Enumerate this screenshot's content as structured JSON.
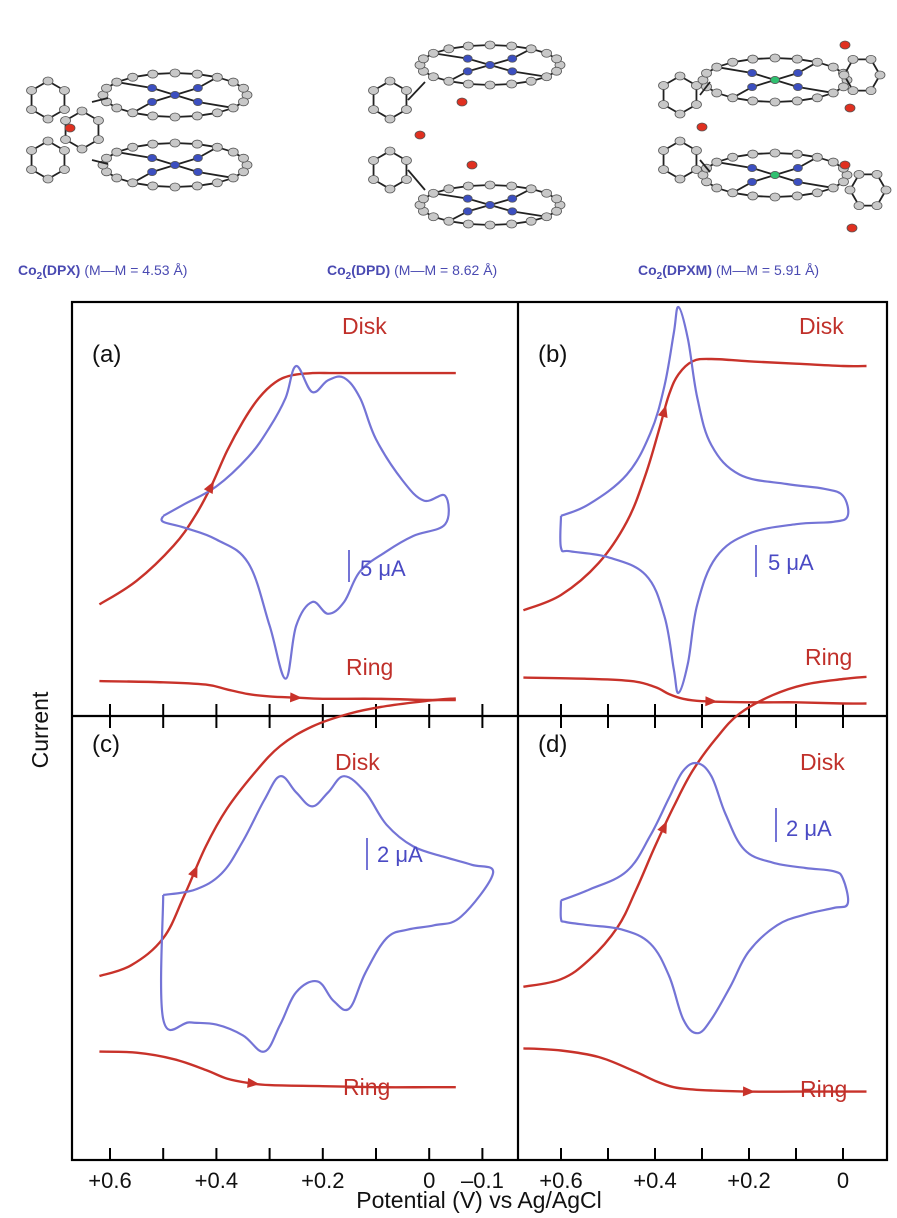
{
  "structures": [
    {
      "name": "Co₂(DPX)",
      "label_prefix": "Co",
      "label_sub": "2",
      "label_ligand": "(DPX)",
      "label_mm": "(M—M = 4.53 Å)"
    },
    {
      "name": "Co₂(DPD)",
      "label_prefix": "Co",
      "label_sub": "2",
      "label_ligand": "(DPD)",
      "label_mm": "(M—M = 8.62 Å)"
    },
    {
      "name": "Co₂(DPXM)",
      "label_prefix": "Co",
      "label_sub": "2",
      "label_ligand": "(DPXM)",
      "label_mm": "(M—M = 5.91 Å)"
    }
  ],
  "colors": {
    "disk_ring": "#c8322a",
    "cv": "#7474d6",
    "frame": "#000000",
    "label_blue": "#4a4ab2"
  },
  "axes": {
    "ylabel": "Current",
    "xlabel": "Potential (V) vs Ag/AgCl",
    "left_ticks": [
      "+0.6",
      "+0.4",
      "+0.2",
      "0",
      "–0.1"
    ],
    "right_ticks": [
      "+0.6",
      "+0.4",
      "+0.2",
      "0"
    ]
  },
  "chart_data": [
    {
      "type": "line",
      "panel": "(a)",
      "disk_label": "Disk",
      "ring_label": "Ring",
      "scale_label": "5 μA",
      "x_range": [
        0.62,
        -0.15
      ],
      "series": [
        {
          "name": "Disk",
          "x": [
            0.62,
            0.55,
            0.48,
            0.44,
            0.41,
            0.38,
            0.35,
            0.32,
            0.29,
            0.26,
            0.22,
            0.18,
            0.12,
            0.05,
            0.0,
            -0.05
          ],
          "y": [
            -0.8,
            -0.6,
            -0.3,
            -0.05,
            0.2,
            0.5,
            0.75,
            0.95,
            1.08,
            1.14,
            1.16,
            1.16,
            1.16,
            1.16,
            1.16,
            1.16
          ]
        },
        {
          "name": "Ring",
          "x": [
            0.62,
            0.5,
            0.42,
            0.38,
            0.34,
            0.3,
            0.25,
            0.2,
            0.1,
            0.0,
            -0.05
          ],
          "y": [
            -1.45,
            -1.46,
            -1.48,
            -1.52,
            -1.56,
            -1.58,
            -1.59,
            -1.6,
            -1.6,
            -1.61,
            -1.61
          ]
        },
        {
          "name": "CV",
          "x": [
            0.5,
            0.46,
            0.4,
            0.34,
            0.3,
            0.27,
            0.25,
            0.22,
            0.19,
            0.16,
            0.13,
            0.1,
            0.05,
            0.01,
            -0.03,
            -0.03,
            0.03,
            0.08,
            0.13,
            0.16,
            0.19,
            0.22,
            0.25,
            0.27,
            0.3,
            0.34,
            0.4,
            0.46,
            0.5,
            0.5
          ],
          "y": [
            -0.05,
            0.05,
            0.2,
            0.45,
            0.7,
            0.95,
            1.22,
            1.0,
            1.1,
            1.12,
            0.95,
            0.6,
            0.25,
            0.08,
            0.12,
            -0.12,
            -0.22,
            -0.35,
            -0.52,
            -0.78,
            -0.88,
            -0.78,
            -0.98,
            -1.43,
            -0.98,
            -0.45,
            -0.25,
            -0.15,
            -0.1,
            -0.05
          ]
        }
      ]
    },
    {
      "type": "line",
      "panel": "(b)",
      "disk_label": "Disk",
      "ring_label": "Ring",
      "scale_label": "5 μA",
      "x_range": [
        0.68,
        -0.1
      ],
      "series": [
        {
          "name": "Disk",
          "x": [
            0.68,
            0.6,
            0.52,
            0.46,
            0.42,
            0.39,
            0.37,
            0.35,
            0.32,
            0.28,
            0.2,
            0.1,
            0.0,
            -0.05
          ],
          "y": [
            -0.85,
            -0.72,
            -0.45,
            -0.1,
            0.3,
            0.7,
            0.98,
            1.15,
            1.26,
            1.28,
            1.26,
            1.24,
            1.22,
            1.22
          ]
        },
        {
          "name": "Ring",
          "x": [
            0.68,
            0.55,
            0.45,
            0.4,
            0.37,
            0.34,
            0.3,
            0.2,
            0.1,
            0.0,
            -0.05
          ],
          "y": [
            -1.42,
            -1.43,
            -1.45,
            -1.5,
            -1.56,
            -1.6,
            -1.62,
            -1.63,
            -1.63,
            -1.64,
            -1.64
          ]
        },
        {
          "name": "CV",
          "x": [
            0.6,
            0.54,
            0.46,
            0.41,
            0.38,
            0.36,
            0.35,
            0.33,
            0.31,
            0.28,
            0.22,
            0.12,
            0.04,
            0.0,
            -0.01,
            0.02,
            0.1,
            0.2,
            0.27,
            0.31,
            0.33,
            0.35,
            0.36,
            0.38,
            0.42,
            0.5,
            0.58,
            0.6,
            0.6
          ],
          "y": [
            -0.05,
            0.05,
            0.3,
            0.65,
            1.05,
            1.5,
            1.72,
            1.45,
            0.95,
            0.55,
            0.3,
            0.22,
            0.18,
            0.12,
            -0.05,
            -0.1,
            -0.12,
            -0.2,
            -0.4,
            -0.8,
            -1.3,
            -1.55,
            -1.35,
            -0.9,
            -0.55,
            -0.4,
            -0.35,
            -0.32,
            -0.05
          ]
        }
      ]
    },
    {
      "type": "line",
      "panel": "(c)",
      "disk_label": "Disk",
      "ring_label": "Ring",
      "scale_label": "2 μA",
      "x_range": [
        0.62,
        -0.15
      ],
      "series": [
        {
          "name": "Disk",
          "x": [
            0.62,
            0.56,
            0.5,
            0.46,
            0.42,
            0.38,
            0.33,
            0.28,
            0.22,
            0.15,
            0.08,
            0.0,
            -0.05
          ],
          "y": [
            -0.75,
            -0.65,
            -0.4,
            0.0,
            0.45,
            0.8,
            1.12,
            1.38,
            1.56,
            1.68,
            1.75,
            1.8,
            1.82
          ]
        },
        {
          "name": "Ring",
          "x": [
            0.62,
            0.55,
            0.48,
            0.42,
            0.38,
            0.34,
            0.3,
            0.2,
            0.1,
            0.0,
            -0.05
          ],
          "y": [
            -1.45,
            -1.46,
            -1.52,
            -1.62,
            -1.7,
            -1.74,
            -1.76,
            -1.77,
            -1.78,
            -1.78,
            -1.78
          ]
        },
        {
          "name": "CV",
          "x": [
            0.5,
            0.44,
            0.39,
            0.35,
            0.31,
            0.28,
            0.25,
            0.22,
            0.19,
            0.16,
            0.12,
            0.08,
            0.03,
            -0.03,
            -0.08,
            -0.12,
            -0.06,
            -0.01,
            0.04,
            0.08,
            0.12,
            0.15,
            0.18,
            0.21,
            0.25,
            0.28,
            0.31,
            0.35,
            0.4,
            0.45,
            0.5,
            0.5
          ],
          "y": [
            0.0,
            0.05,
            0.2,
            0.5,
            0.88,
            1.1,
            0.95,
            0.82,
            0.95,
            1.1,
            0.95,
            0.65,
            0.45,
            0.35,
            0.28,
            0.2,
            -0.2,
            -0.28,
            -0.32,
            -0.4,
            -0.72,
            -1.05,
            -0.98,
            -0.8,
            -0.9,
            -1.2,
            -1.45,
            -1.3,
            -1.2,
            -1.18,
            -1.15,
            0.0
          ]
        }
      ]
    },
    {
      "type": "line",
      "panel": "(d)",
      "disk_label": "Disk",
      "ring_label": "Ring",
      "scale_label": "2 μA",
      "x_range": [
        0.68,
        -0.1
      ],
      "series": [
        {
          "name": "Disk",
          "x": [
            0.68,
            0.6,
            0.54,
            0.48,
            0.44,
            0.4,
            0.36,
            0.32,
            0.27,
            0.22,
            0.15,
            0.08,
            0.0,
            -0.05
          ],
          "y": [
            -0.85,
            -0.78,
            -0.6,
            -0.3,
            0.05,
            0.45,
            0.82,
            1.15,
            1.45,
            1.68,
            1.85,
            1.95,
            2.0,
            2.02
          ]
        },
        {
          "name": "Ring",
          "x": [
            0.68,
            0.6,
            0.52,
            0.45,
            0.4,
            0.36,
            0.32,
            0.28,
            0.2,
            0.1,
            0.0,
            -0.05
          ],
          "y": [
            -1.42,
            -1.44,
            -1.5,
            -1.62,
            -1.72,
            -1.78,
            -1.8,
            -1.81,
            -1.82,
            -1.82,
            -1.82,
            -1.82
          ]
        },
        {
          "name": "CV",
          "x": [
            0.6,
            0.54,
            0.46,
            0.41,
            0.37,
            0.34,
            0.31,
            0.28,
            0.25,
            0.21,
            0.15,
            0.08,
            0.02,
            0.0,
            -0.01,
            0.02,
            0.08,
            0.14,
            0.2,
            0.24,
            0.28,
            0.31,
            0.34,
            0.37,
            0.41,
            0.47,
            0.54,
            0.59,
            0.6,
            0.6
          ],
          "y": [
            -0.05,
            0.05,
            0.22,
            0.55,
            0.9,
            1.15,
            1.22,
            1.1,
            0.75,
            0.42,
            0.3,
            0.25,
            0.22,
            0.15,
            -0.08,
            -0.12,
            -0.18,
            -0.28,
            -0.52,
            -0.85,
            -1.15,
            -1.28,
            -1.15,
            -0.75,
            -0.45,
            -0.32,
            -0.28,
            -0.25,
            -0.22,
            -0.05
          ]
        }
      ]
    }
  ]
}
